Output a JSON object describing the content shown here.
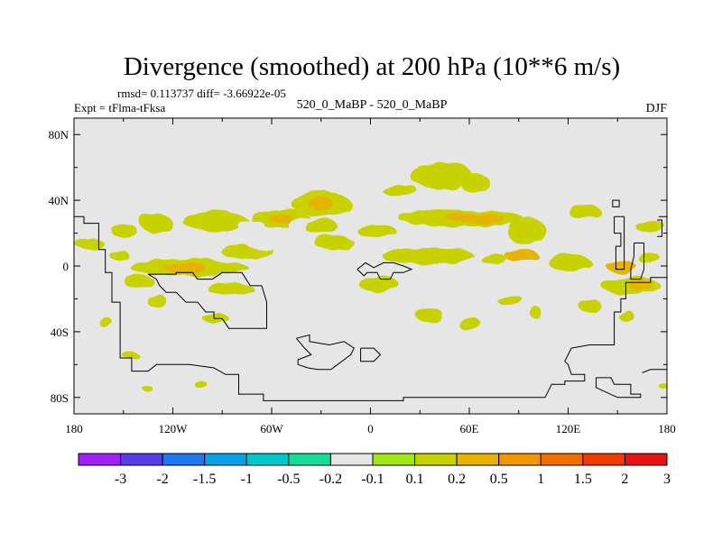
{
  "chart_data": {
    "type": "heatmap",
    "title": "Divergence (smoothed) at 200 hPa (10**6 m/s)",
    "stats": "rmsd= 0.113737 diff= -3.66922e-05",
    "experiment": "Expt = tFlma-tFksa",
    "case": "520_0_MaBP - 520_0_MaBP",
    "season": "DJF",
    "x_ticks": [
      "180",
      "120W",
      "60W",
      "0",
      "60E",
      "120E",
      "180"
    ],
    "x_values": [
      -180,
      -120,
      -60,
      0,
      60,
      120,
      180
    ],
    "y_ticks": [
      "80N",
      "40N",
      "0",
      "40S",
      "80S"
    ],
    "y_values": [
      80,
      40,
      0,
      -40,
      -80
    ],
    "xlim": [
      -180,
      180
    ],
    "ylim": [
      -90,
      90
    ],
    "colorbar": {
      "labels": [
        "-3",
        "-2",
        "-1.5",
        "-1",
        "-0.5",
        "-0.2",
        "-0.1",
        "0.1",
        "0.2",
        "0.5",
        "1",
        "1.5",
        "2",
        "3"
      ],
      "colors": [
        "#a020f0",
        "#5a3ce6",
        "#1e78f0",
        "#0aa0e6",
        "#00c8c8",
        "#14dc96",
        "#e6e6e6",
        "#a0e614",
        "#c8d200",
        "#e6b400",
        "#f09600",
        "#f06e00",
        "#f03c00",
        "#e61414"
      ]
    },
    "patches": [
      {
        "lon": -150,
        "lat": 22,
        "rx": 8,
        "ry": 4,
        "level": "0.2"
      },
      {
        "lon": -170,
        "lat": 13,
        "rx": 9,
        "ry": 3,
        "level": "0.2"
      },
      {
        "lon": -164,
        "lat": 7,
        "rx": 6,
        "ry": 3,
        "level": "-0.2"
      },
      {
        "lon": -152,
        "lat": 6,
        "rx": 6,
        "ry": 3,
        "level": "0.2"
      },
      {
        "lon": -170,
        "lat": -15,
        "rx": 10,
        "ry": 4,
        "level": "-0.2"
      },
      {
        "lon": -141,
        "lat": -9,
        "rx": 9,
        "ry": 4,
        "level": "0.2"
      },
      {
        "lon": -172,
        "lat": -30,
        "rx": 5,
        "ry": 3,
        "level": "-0.2"
      },
      {
        "lon": -129,
        "lat": -22,
        "rx": 6,
        "ry": 4,
        "level": "0.2"
      },
      {
        "lon": -130,
        "lat": 26,
        "rx": 10,
        "ry": 5,
        "level": "0.2"
      },
      {
        "lon": -94,
        "lat": 27,
        "rx": 20,
        "ry": 6,
        "level": "0.2"
      },
      {
        "lon": -108,
        "lat": 10,
        "rx": 34,
        "ry": 6,
        "level": "-0.2"
      },
      {
        "lon": -110,
        "lat": -1,
        "rx": 36,
        "ry": 5,
        "level": "0.2"
      },
      {
        "lon": -112,
        "lat": -1,
        "rx": 13,
        "ry": 3,
        "level": "0.5"
      },
      {
        "lon": -75,
        "lat": 9,
        "rx": 16,
        "ry": 4,
        "level": "0.2"
      },
      {
        "lon": -55,
        "lat": 29,
        "rx": 18,
        "ry": 6,
        "level": "0.2"
      },
      {
        "lon": -55,
        "lat": 29,
        "rx": 7,
        "ry": 3,
        "level": "0.5"
      },
      {
        "lon": -72,
        "lat": 24,
        "rx": 8,
        "ry": 4,
        "level": "-0.2"
      },
      {
        "lon": -62,
        "lat": 14,
        "rx": 14,
        "ry": 4,
        "level": "-0.2"
      },
      {
        "lon": -40,
        "lat": 25,
        "rx": 10,
        "ry": 5,
        "level": "-0.2"
      },
      {
        "lon": -30,
        "lat": 38,
        "rx": 18,
        "ry": 7,
        "level": "0.2"
      },
      {
        "lon": -30,
        "lat": 38,
        "rx": 8,
        "ry": 3,
        "level": "0.5"
      },
      {
        "lon": -30,
        "lat": 24,
        "rx": 10,
        "ry": 5,
        "level": "0.2"
      },
      {
        "lon": -22,
        "lat": 14,
        "rx": 12,
        "ry": 4,
        "level": "0.2"
      },
      {
        "lon": -10,
        "lat": 24,
        "rx": 8,
        "ry": 6,
        "level": "-0.2"
      },
      {
        "lon": -15,
        "lat": 6,
        "rx": 9,
        "ry": 4,
        "level": "-0.2"
      },
      {
        "lon": 1,
        "lat": 37,
        "rx": 5,
        "ry": 3,
        "level": "-0.2"
      },
      {
        "lon": -42,
        "lat": -22,
        "rx": 15,
        "ry": 6,
        "level": "-0.2"
      },
      {
        "lon": -18,
        "lat": -16,
        "rx": 7,
        "ry": 3,
        "level": "-0.2"
      },
      {
        "lon": -85,
        "lat": -14,
        "rx": 14,
        "ry": 4,
        "level": "0.2"
      },
      {
        "lon": -65,
        "lat": -33,
        "rx": 9,
        "ry": 5,
        "level": "-0.2"
      },
      {
        "lon": -106,
        "lat": -25,
        "rx": 9,
        "ry": 3,
        "level": "-0.2"
      },
      {
        "lon": -94,
        "lat": -32,
        "rx": 8,
        "ry": 3,
        "level": "0.2"
      },
      {
        "lon": -5,
        "lat": 63,
        "rx": 16,
        "ry": 5,
        "level": "-0.2"
      },
      {
        "lon": 18,
        "lat": 46,
        "rx": 11,
        "ry": 3,
        "level": "0.2"
      },
      {
        "lon": 43,
        "lat": 55,
        "rx": 19,
        "ry": 8,
        "level": "0.2"
      },
      {
        "lon": 64,
        "lat": 50,
        "rx": 9,
        "ry": 6,
        "level": "0.2"
      },
      {
        "lon": 55,
        "lat": 29,
        "rx": 38,
        "ry": 5,
        "level": "0.2"
      },
      {
        "lon": 64,
        "lat": 29,
        "rx": 18,
        "ry": 3,
        "level": "0.5"
      },
      {
        "lon": 4,
        "lat": 21,
        "rx": 12,
        "ry": 4,
        "level": "0.2"
      },
      {
        "lon": 35,
        "lat": 6,
        "rx": 28,
        "ry": 5,
        "level": "0.2"
      },
      {
        "lon": 95,
        "lat": 21,
        "rx": 12,
        "ry": 8,
        "level": "0.2"
      },
      {
        "lon": 92,
        "lat": 6,
        "rx": 10,
        "ry": 4,
        "level": "0.5"
      },
      {
        "lon": 75,
        "lat": 4,
        "rx": 8,
        "ry": 3,
        "level": "0.2"
      },
      {
        "lon": 130,
        "lat": 33,
        "rx": 10,
        "ry": 4,
        "level": "0.2"
      },
      {
        "lon": 113,
        "lat": 11,
        "rx": 10,
        "ry": 4,
        "level": "-0.2"
      },
      {
        "lon": 121,
        "lat": 2,
        "rx": 13,
        "ry": 5,
        "level": "0.2"
      },
      {
        "lon": 150,
        "lat": 10,
        "rx": 11,
        "ry": 8,
        "level": "-0.2"
      },
      {
        "lon": 152,
        "lat": 0,
        "rx": 9,
        "ry": 4,
        "level": "0.5"
      },
      {
        "lon": 170,
        "lat": 24,
        "rx": 9,
        "ry": 4,
        "level": "0.2"
      },
      {
        "lon": 170,
        "lat": 16,
        "rx": 6,
        "ry": 3,
        "level": "-0.2"
      },
      {
        "lon": 169,
        "lat": 5,
        "rx": 7,
        "ry": 3,
        "level": "0.2"
      },
      {
        "lon": 158,
        "lat": -12,
        "rx": 18,
        "ry": 5,
        "level": "0.2"
      },
      {
        "lon": 164,
        "lat": -12,
        "rx": 7,
        "ry": 3,
        "level": "0.5"
      },
      {
        "lon": 133,
        "lat": -24,
        "rx": 7,
        "ry": 4,
        "level": "0.2"
      },
      {
        "lon": 155,
        "lat": -30,
        "rx": 5,
        "ry": 3,
        "level": "0.2"
      },
      {
        "lon": 5,
        "lat": -11,
        "rx": 12,
        "ry": 5,
        "level": "0.2"
      },
      {
        "lon": 12,
        "lat": -19,
        "rx": 7,
        "ry": 3,
        "level": "-0.2"
      },
      {
        "lon": 50,
        "lat": -20,
        "rx": 11,
        "ry": 3,
        "level": "-0.2"
      },
      {
        "lon": 36,
        "lat": -30,
        "rx": 8,
        "ry": 5,
        "level": "0.2"
      },
      {
        "lon": 60,
        "lat": -35,
        "rx": 7,
        "ry": 4,
        "level": "0.2"
      },
      {
        "lon": 85,
        "lat": -21,
        "rx": 8,
        "ry": 3,
        "level": "0.2"
      },
      {
        "lon": 86,
        "lat": -35,
        "rx": 6,
        "ry": 3,
        "level": "-0.2"
      },
      {
        "lon": 100,
        "lat": -28,
        "rx": 4,
        "ry": 3,
        "level": "0.2"
      },
      {
        "lon": -160,
        "lat": -35,
        "rx": 4,
        "ry": 3,
        "level": "0.2"
      },
      {
        "lon": -175,
        "lat": -30,
        "rx": 3,
        "ry": 2,
        "level": "-0.2"
      },
      {
        "lon": 30,
        "lat": -50,
        "rx": 4,
        "ry": 2,
        "level": "-0.2"
      },
      {
        "lon": -145,
        "lat": -55,
        "rx": 5,
        "ry": 2,
        "level": "0.2"
      },
      {
        "lon": -105,
        "lat": -70,
        "rx": 7,
        "ry": 3,
        "level": "-0.2"
      },
      {
        "lon": -103,
        "lat": -72,
        "rx": 4,
        "ry": 2,
        "level": "0.2"
      },
      {
        "lon": -135,
        "lat": -75,
        "rx": 3,
        "ry": 2,
        "level": "0.2"
      },
      {
        "lon": 135,
        "lat": -74,
        "rx": 5,
        "ry": 2,
        "level": "-0.2"
      },
      {
        "lon": 165,
        "lat": -75,
        "rx": 5,
        "ry": 2,
        "level": "-0.2"
      },
      {
        "lon": 178,
        "lat": -73,
        "rx": 3,
        "ry": 2,
        "level": "0.2"
      }
    ],
    "coastlines": [
      [
        [
          -180,
          30
        ],
        [
          -174,
          30
        ],
        [
          -174,
          26
        ],
        [
          -165,
          26
        ],
        [
          -165,
          10
        ],
        [
          -161,
          10
        ],
        [
          -161,
          -4
        ],
        [
          -157,
          -4
        ],
        [
          -157,
          -22
        ],
        [
          -152,
          -22
        ],
        [
          -152,
          -56
        ],
        [
          -145,
          -56
        ],
        [
          -145,
          -64
        ],
        [
          -135,
          -64
        ],
        [
          -130,
          -60
        ],
        [
          -110,
          -60
        ],
        [
          -95,
          -62
        ],
        [
          -88,
          -66
        ],
        [
          -80,
          -66
        ],
        [
          -80,
          -78
        ],
        [
          -65,
          -78
        ],
        [
          -65,
          -82
        ],
        [
          -10,
          -82
        ],
        [
          20,
          -82
        ],
        [
          20,
          -80
        ],
        [
          106,
          -80
        ],
        [
          110,
          -72
        ],
        [
          118,
          -72
        ],
        [
          118,
          -70
        ],
        [
          130,
          -70
        ],
        [
          130,
          -66
        ],
        [
          122,
          -66
        ],
        [
          120,
          -60
        ],
        [
          118,
          -58
        ],
        [
          122,
          -50
        ],
        [
          133,
          -48
        ],
        [
          148,
          -48
        ],
        [
          148,
          -28
        ],
        [
          152,
          -28
        ],
        [
          152,
          -20
        ],
        [
          155,
          -20
        ],
        [
          155,
          -10
        ],
        [
          170,
          -10
        ],
        [
          170,
          -7
        ],
        [
          180,
          -7
        ]
      ],
      [
        [
          -135,
          -5
        ],
        [
          -118,
          -5
        ],
        [
          -118,
          -4
        ],
        [
          -108,
          -4
        ],
        [
          -105,
          -8
        ],
        [
          -96,
          -8
        ],
        [
          -90,
          -4
        ],
        [
          -78,
          -4
        ],
        [
          -73,
          -12
        ],
        [
          -66,
          -12
        ],
        [
          -63,
          -22
        ],
        [
          -63,
          -38
        ],
        [
          -86,
          -38
        ],
        [
          -90,
          -32
        ],
        [
          -95,
          -32
        ],
        [
          -95,
          -28
        ],
        [
          -100,
          -28
        ],
        [
          -105,
          -22
        ],
        [
          -112,
          -22
        ],
        [
          -118,
          -16
        ],
        [
          -124,
          -16
        ],
        [
          -128,
          -12
        ],
        [
          -130,
          -8
        ],
        [
          -135,
          -5
        ]
      ],
      [
        [
          -8,
          -2
        ],
        [
          -4,
          -6
        ],
        [
          -2,
          -4
        ],
        [
          4,
          -4
        ],
        [
          6,
          -8
        ],
        [
          12,
          -8
        ],
        [
          14,
          -4
        ],
        [
          20,
          -4
        ],
        [
          25,
          -2
        ],
        [
          20,
          0
        ],
        [
          14,
          2
        ],
        [
          8,
          2
        ],
        [
          2,
          -1
        ],
        [
          -3,
          2
        ],
        [
          -8,
          -2
        ]
      ],
      [
        [
          -45,
          -44
        ],
        [
          -37,
          -42
        ],
        [
          -37,
          -46
        ],
        [
          -25,
          -48
        ],
        [
          -16,
          -46
        ],
        [
          -10,
          -50
        ],
        [
          -12,
          -54
        ],
        [
          -20,
          -60
        ],
        [
          -24,
          -63
        ],
        [
          -32,
          -63
        ],
        [
          -38,
          -62
        ],
        [
          -44,
          -60
        ],
        [
          -44,
          -57
        ],
        [
          -36,
          -54
        ],
        [
          -40,
          -50
        ],
        [
          -45,
          -44
        ]
      ],
      [
        [
          -6,
          -50
        ],
        [
          2,
          -50
        ],
        [
          6,
          -54
        ],
        [
          2,
          -58
        ],
        [
          -6,
          -58
        ],
        [
          -6,
          -50
        ]
      ],
      [
        [
          147,
          40
        ],
        [
          151,
          40
        ],
        [
          151,
          36
        ],
        [
          147,
          36
        ],
        [
          147,
          40
        ]
      ],
      [
        [
          148,
          30
        ],
        [
          154,
          30
        ],
        [
          154,
          -2
        ],
        [
          149,
          -2
        ],
        [
          149,
          12
        ],
        [
          152,
          12
        ],
        [
          152,
          20
        ],
        [
          148,
          20
        ],
        [
          148,
          30
        ]
      ],
      [
        [
          160,
          14
        ],
        [
          166,
          14
        ],
        [
          166,
          -2
        ],
        [
          164,
          -8
        ],
        [
          158,
          -8
        ],
        [
          158,
          -2
        ],
        [
          160,
          6
        ],
        [
          160,
          14
        ]
      ],
      [
        [
          175,
          30
        ],
        [
          180,
          30
        ]
      ],
      [
        [
          174,
          28
        ],
        [
          177,
          28
        ],
        [
          177,
          18
        ],
        [
          174,
          18
        ]
      ],
      [
        [
          137,
          -68
        ],
        [
          146,
          -68
        ],
        [
          148,
          -72
        ],
        [
          158,
          -72
        ],
        [
          158,
          -78
        ],
        [
          164,
          -78
        ],
        [
          164,
          -80
        ],
        [
          150,
          -80
        ],
        [
          137,
          -74
        ],
        [
          137,
          -68
        ]
      ],
      [
        [
          180,
          -63
        ],
        [
          170,
          -63
        ],
        [
          165,
          -65
        ]
      ]
    ]
  }
}
